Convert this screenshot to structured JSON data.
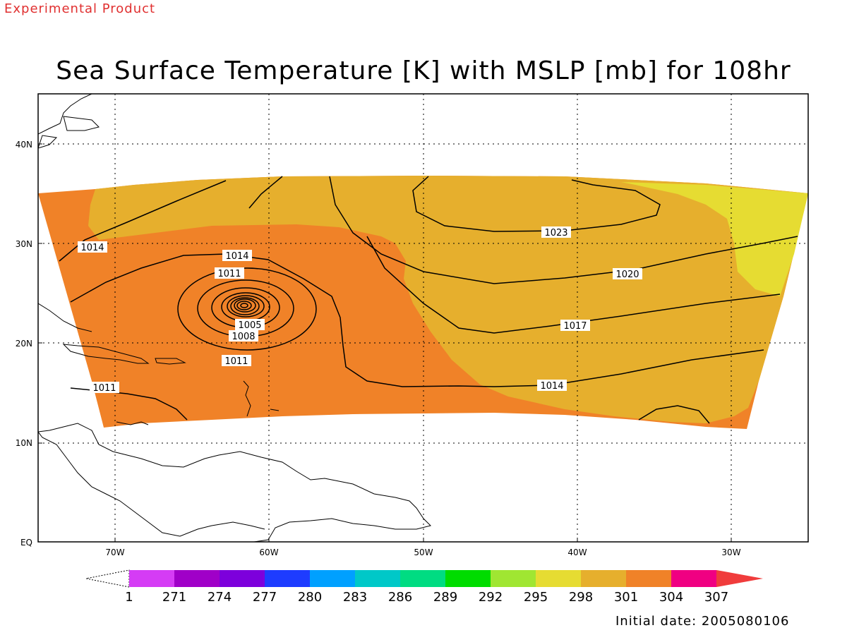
{
  "header": {
    "experimental_label": "Experimental Product",
    "title": "Sea Surface Temperature [K] with MSLP [mb] for 108hr",
    "initial_date": "Initial date: 2005080106"
  },
  "map": {
    "longitude_labels": [
      "70W",
      "60W",
      "50W",
      "40W",
      "30W"
    ],
    "latitude_labels": [
      "EQ",
      "10N",
      "20N",
      "30N",
      "40N"
    ],
    "pressure_contour_labels": [
      "1014",
      "1014",
      "1011",
      "1005",
      "1008",
      "1011",
      "1011",
      "1023",
      "1020",
      "1017",
      "1014"
    ]
  },
  "colorbar": {
    "labels": [
      "1",
      "271",
      "274",
      "277",
      "280",
      "283",
      "286",
      "289",
      "292",
      "295",
      "298",
      "301",
      "304",
      "307"
    ],
    "colors": [
      "#d53cf5",
      "#a000c8",
      "#7d00dc",
      "#1e3cff",
      "#00a0ff",
      "#00c8c8",
      "#00dc82",
      "#00dc00",
      "#a0e632",
      "#e6dc32",
      "#e6af2d",
      "#f08228",
      "#f00082",
      "#f03c3c"
    ]
  },
  "chart_data": {
    "type": "heatmap",
    "title": "Sea Surface Temperature [K] with MSLP [mb] for 108hr",
    "x_ticks": [
      "70W",
      "60W",
      "50W",
      "40W",
      "30W"
    ],
    "y_ticks": [
      "EQ",
      "10N",
      "20N",
      "30N",
      "40N"
    ],
    "sst_levels_K": [
      1,
      271,
      274,
      277,
      280,
      283,
      286,
      289,
      292,
      295,
      298,
      301,
      304,
      307
    ],
    "sst_regions": [
      {
        "range_K": "301-304",
        "color": "#f08228",
        "area": "Caribbean / western Atlantic, 10N-32N, 75W-50W"
      },
      {
        "range_K": "298-301",
        "color": "#e6af2d",
        "area": "central Atlantic, 15N-37N, 55W-27W"
      },
      {
        "range_K": "295-298",
        "color": "#e6dc32",
        "area": "northeast corner near 33N, 30W-25W"
      }
    ],
    "mslp_contours_mb": [
      1005,
      1008,
      1011,
      1014,
      1017,
      1020,
      1023
    ],
    "low_center": {
      "lon": "62W",
      "lat": "24N"
    },
    "grid": true,
    "initial_date": "2005080106"
  }
}
